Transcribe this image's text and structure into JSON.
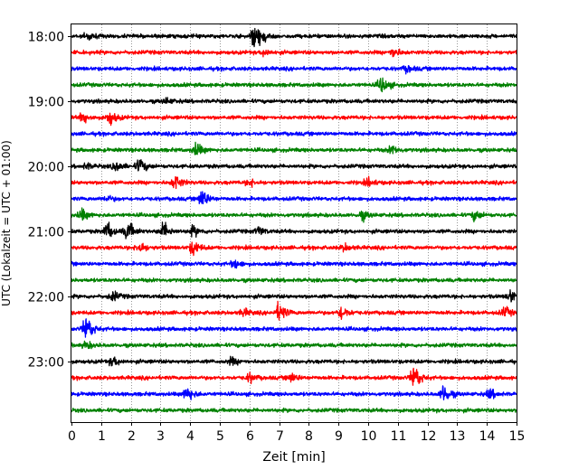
{
  "chart_data": {
    "type": "line",
    "title": "",
    "xlabel": "Zeit  [min]",
    "ylabel": "UTC (Lokalzeit = UTC + 01:00)",
    "xlim": [
      0,
      15
    ],
    "x_ticks": [
      "0",
      "1",
      "2",
      "3",
      "4",
      "5",
      "6",
      "7",
      "8",
      "9",
      "10",
      "11",
      "12",
      "13",
      "14",
      "15"
    ],
    "y_ticks": [
      "18:00",
      "19:00",
      "20:00",
      "21:00",
      "22:00",
      "23:00"
    ],
    "y_tick_positions": [
      "18:00",
      "19:00",
      "20:00",
      "21:00",
      "22:00",
      "23:00"
    ],
    "trace_interval_min": 15,
    "traces_start": "18:00",
    "trace_count": 24,
    "trace_colors": [
      "#000000",
      "#ff0000",
      "#0000ff",
      "#008000"
    ],
    "vertical_grid": "dotted at each minute",
    "legend": "none",
    "traces": [
      {
        "start": "18:00",
        "color": "#000000",
        "events": [
          [
            0.55,
            1.0
          ],
          [
            6.15,
            3.0
          ],
          [
            6.35,
            2.0
          ]
        ]
      },
      {
        "start": "18:15",
        "color": "#ff0000",
        "events": [
          [
            10.85,
            1.5
          ],
          [
            6.5,
            0.9
          ]
        ]
      },
      {
        "start": "18:30",
        "color": "#0000ff",
        "events": [
          [
            11.3,
            1.0
          ]
        ]
      },
      {
        "start": "18:45",
        "color": "#008000",
        "events": [
          [
            10.45,
            2.5
          ]
        ]
      },
      {
        "start": "19:00",
        "color": "#000000",
        "events": [
          [
            3.2,
            0.8
          ]
        ]
      },
      {
        "start": "19:15",
        "color": "#ff0000",
        "events": [
          [
            0.4,
            1.5
          ],
          [
            1.3,
            2.0
          ]
        ]
      },
      {
        "start": "19:30",
        "color": "#0000ff",
        "events": []
      },
      {
        "start": "19:45",
        "color": "#008000",
        "events": [
          [
            4.2,
            2.0
          ],
          [
            10.8,
            1.2
          ]
        ]
      },
      {
        "start": "20:00",
        "color": "#000000",
        "events": [
          [
            0.5,
            0.8
          ],
          [
            1.5,
            1.5
          ],
          [
            2.3,
            2.2
          ]
        ]
      },
      {
        "start": "20:15",
        "color": "#ff0000",
        "events": [
          [
            3.5,
            2.2
          ],
          [
            6.0,
            1.0
          ],
          [
            10.0,
            1.1
          ]
        ]
      },
      {
        "start": "20:30",
        "color": "#0000ff",
        "events": [
          [
            4.4,
            2.8
          ],
          [
            1.2,
            0.8
          ]
        ]
      },
      {
        "start": "20:45",
        "color": "#008000",
        "events": [
          [
            0.35,
            1.5
          ],
          [
            9.8,
            1.2
          ],
          [
            13.6,
            1.5
          ]
        ]
      },
      {
        "start": "21:00",
        "color": "#000000",
        "events": [
          [
            1.2,
            2.5
          ],
          [
            1.9,
            2.8
          ],
          [
            3.1,
            2.5
          ],
          [
            4.1,
            1.4
          ],
          [
            6.3,
            1.2
          ]
        ]
      },
      {
        "start": "21:15",
        "color": "#ff0000",
        "events": [
          [
            2.3,
            1.6
          ],
          [
            4.1,
            2.2
          ],
          [
            9.2,
            1.0
          ]
        ]
      },
      {
        "start": "21:30",
        "color": "#0000ff",
        "events": [
          [
            5.5,
            1.2
          ]
        ]
      },
      {
        "start": "21:45",
        "color": "#008000",
        "events": []
      },
      {
        "start": "22:00",
        "color": "#000000",
        "events": [
          [
            1.4,
            1.3
          ],
          [
            14.8,
            2.0
          ]
        ]
      },
      {
        "start": "22:15",
        "color": "#ff0000",
        "events": [
          [
            7.0,
            3.0
          ],
          [
            9.1,
            2.2
          ],
          [
            5.8,
            1.0
          ],
          [
            14.6,
            1.4
          ]
        ]
      },
      {
        "start": "22:30",
        "color": "#0000ff",
        "events": [
          [
            0.5,
            4.2
          ]
        ]
      },
      {
        "start": "22:45",
        "color": "#008000",
        "events": [
          [
            0.5,
            1.0
          ]
        ]
      },
      {
        "start": "23:00",
        "color": "#000000",
        "events": [
          [
            1.4,
            1.3
          ],
          [
            5.4,
            1.0
          ]
        ]
      },
      {
        "start": "23:15",
        "color": "#ff0000",
        "events": [
          [
            11.55,
            4.0
          ],
          [
            7.4,
            1.3
          ],
          [
            6.0,
            1.2
          ]
        ]
      },
      {
        "start": "23:30",
        "color": "#0000ff",
        "events": [
          [
            3.9,
            2.3
          ],
          [
            12.55,
            3.0
          ],
          [
            14.1,
            1.4
          ]
        ]
      },
      {
        "start": "23:45",
        "color": "#008000",
        "events": []
      }
    ]
  }
}
